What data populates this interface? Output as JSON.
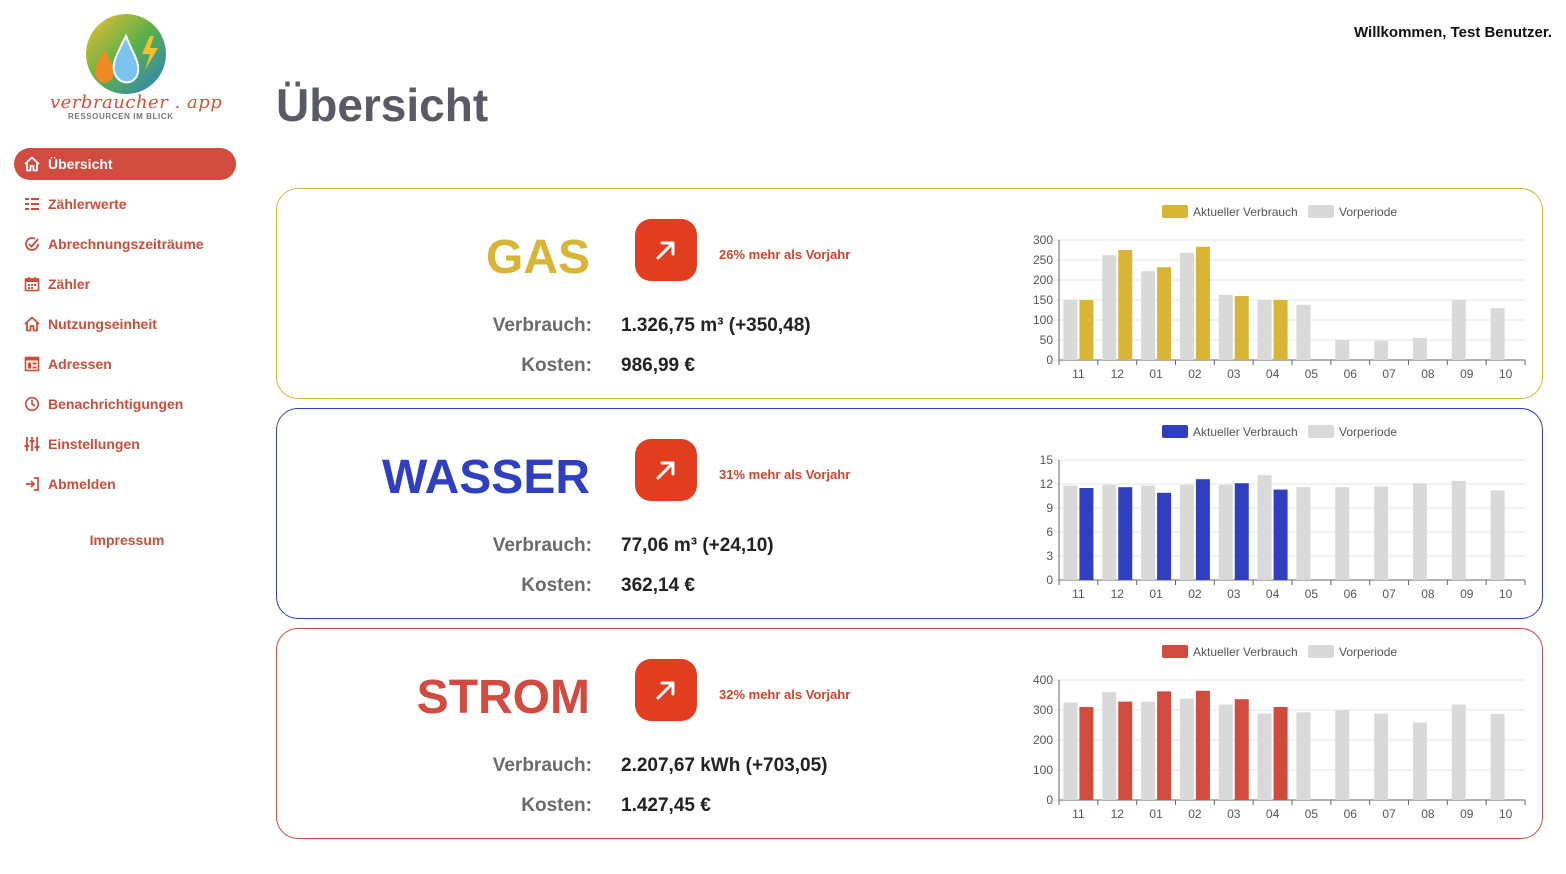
{
  "app": {
    "logo_name": "verbraucher . app",
    "logo_tagline": "RESSOURCEN IM BLICK"
  },
  "header": {
    "welcome": "Willkommen, Test Benutzer.",
    "title": "Übersicht"
  },
  "sidebar": {
    "items": [
      {
        "label": "Übersicht",
        "icon": "home-icon",
        "active": true
      },
      {
        "label": "Zählerwerte",
        "icon": "list-icon",
        "active": false
      },
      {
        "label": "Abrechnungszeiträume",
        "icon": "circle-check-icon",
        "active": false
      },
      {
        "label": "Zähler",
        "icon": "calendar-icon",
        "active": false
      },
      {
        "label": "Nutzungseinheit",
        "icon": "home-icon",
        "active": false
      },
      {
        "label": "Adressen",
        "icon": "address-book-icon",
        "active": false
      },
      {
        "label": "Benachrichtigungen",
        "icon": "clock-icon",
        "active": false
      },
      {
        "label": "Einstellungen",
        "icon": "sliders-icon",
        "active": false
      },
      {
        "label": "Abmelden",
        "icon": "logout-icon",
        "active": false
      }
    ],
    "impressum": "Impressum"
  },
  "colors": {
    "accent": "#d14b3f",
    "gas": "#d8b534",
    "wasser": "#2f3fbf",
    "strom": "#d14b3f",
    "previous": "#d9d9d9",
    "trend": "#e33d1f"
  },
  "cards": {
    "gas": {
      "label": "GAS",
      "trend": "26% mehr als Vorjahr",
      "verbrauch_label": "Verbrauch:",
      "verbrauch": "1.326,75 m³ (+350,48)",
      "kosten_label": "Kosten:",
      "kosten": "986,99 €"
    },
    "wasser": {
      "label": "WASSER",
      "trend": "31% mehr als Vorjahr",
      "verbrauch_label": "Verbrauch:",
      "verbrauch": "77,06 m³ (+24,10)",
      "kosten_label": "Kosten:",
      "kosten": "362,14 €"
    },
    "strom": {
      "label": "STROM",
      "trend": "32% mehr als Vorjahr",
      "verbrauch_label": "Verbrauch:",
      "verbrauch": "2.207,67 kWh (+703,05)",
      "kosten_label": "Kosten:",
      "kosten": "1.427,45 €"
    }
  },
  "chart_data": [
    {
      "type": "bar",
      "id": "gas",
      "categories": [
        "11",
        "12",
        "01",
        "02",
        "03",
        "04",
        "05",
        "06",
        "07",
        "08",
        "09",
        "10"
      ],
      "series": [
        {
          "name": "Vorperiode",
          "color": "#d9d9d9",
          "values": [
            150,
            262,
            222,
            268,
            163,
            150,
            138,
            50,
            48,
            55,
            150,
            130
          ]
        },
        {
          "name": "Aktueller Verbrauch",
          "color": "#d8b534",
          "values": [
            150,
            275,
            232,
            283,
            160,
            150,
            null,
            null,
            null,
            null,
            null,
            null
          ]
        }
      ],
      "legend": [
        "Aktueller Verbrauch",
        "Vorperiode"
      ],
      "legend_position": "top",
      "yticks": [
        0,
        50,
        100,
        150,
        200,
        250,
        300
      ],
      "ylim": [
        0,
        300
      ],
      "grid": true
    },
    {
      "type": "bar",
      "id": "wasser",
      "categories": [
        "11",
        "12",
        "01",
        "02",
        "03",
        "04",
        "05",
        "06",
        "07",
        "08",
        "09",
        "10"
      ],
      "series": [
        {
          "name": "Vorperiode",
          "color": "#d9d9d9",
          "values": [
            11.8,
            11.9,
            11.8,
            11.9,
            11.9,
            13.1,
            11.6,
            11.6,
            11.7,
            12.1,
            12.4,
            11.2
          ]
        },
        {
          "name": "Aktueller Verbrauch",
          "color": "#2f3fbf",
          "values": [
            11.5,
            11.6,
            10.9,
            12.6,
            12.1,
            11.3,
            null,
            null,
            null,
            null,
            null,
            null
          ]
        }
      ],
      "legend": [
        "Aktueller Verbrauch",
        "Vorperiode"
      ],
      "legend_position": "top",
      "yticks": [
        0,
        3,
        6,
        9,
        12,
        15
      ],
      "ylim": [
        0,
        15
      ],
      "grid": true
    },
    {
      "type": "bar",
      "id": "strom",
      "categories": [
        "11",
        "12",
        "01",
        "02",
        "03",
        "04",
        "05",
        "06",
        "07",
        "08",
        "09",
        "10"
      ],
      "series": [
        {
          "name": "Vorperiode",
          "color": "#d9d9d9",
          "values": [
            325,
            360,
            328,
            338,
            318,
            288,
            292,
            298,
            288,
            258,
            318,
            287
          ]
        },
        {
          "name": "Aktueller Verbrauch",
          "color": "#d14b3f",
          "values": [
            310,
            328,
            362,
            364,
            336,
            310,
            null,
            null,
            null,
            null,
            null,
            null
          ]
        }
      ],
      "legend": [
        "Aktueller Verbrauch",
        "Vorperiode"
      ],
      "legend_position": "top",
      "yticks": [
        0,
        100,
        200,
        300,
        400
      ],
      "ylim": [
        0,
        400
      ],
      "grid": true
    }
  ]
}
